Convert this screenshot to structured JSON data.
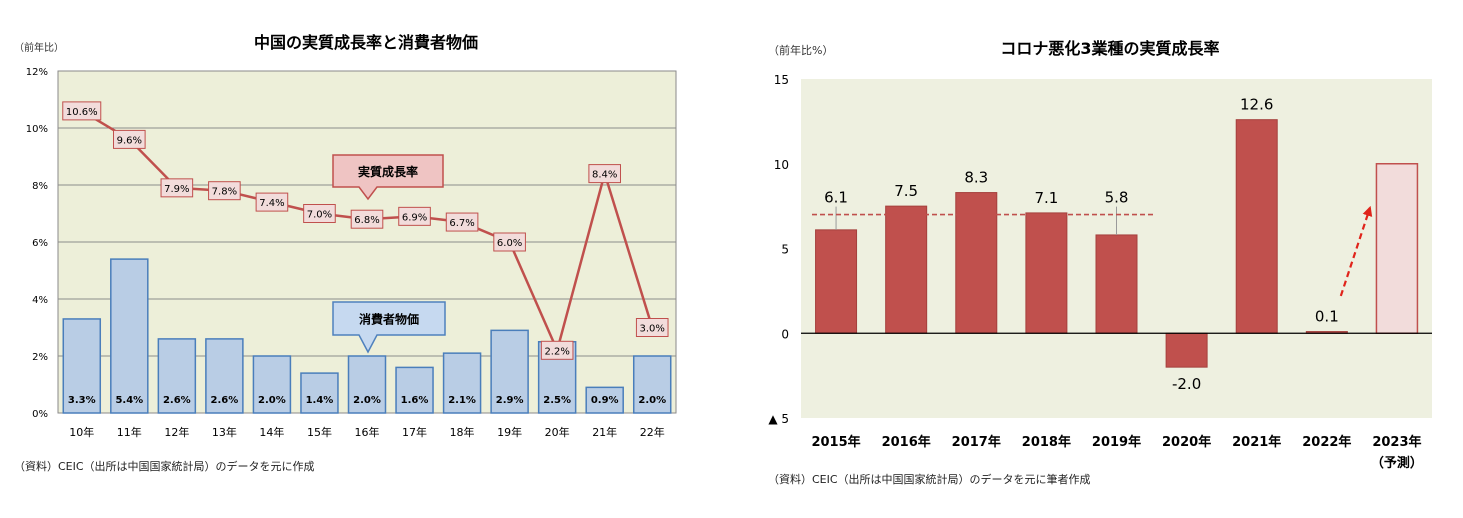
{
  "chart_data": [
    {
      "type": "bar",
      "title": "中国の実質成長率と消費者物価",
      "ylabel": "（前年比）",
      "ylim": [
        0,
        12
      ],
      "yticks": [
        {
          "value": 0,
          "label": "0%"
        },
        {
          "value": 2,
          "label": "2%"
        },
        {
          "value": 4,
          "label": "4%"
        },
        {
          "value": 6,
          "label": "6%"
        },
        {
          "value": 8,
          "label": "8%"
        },
        {
          "value": 10,
          "label": "10%"
        },
        {
          "value": 12,
          "label": "12%"
        }
      ],
      "grid": true,
      "categories": [
        "10年",
        "11年",
        "12年",
        "13年",
        "14年",
        "15年",
        "16年",
        "17年",
        "18年",
        "19年",
        "20年",
        "21年",
        "22年"
      ],
      "series": [
        {
          "name": "消費者物価",
          "type": "bar",
          "color": "#B9CDE5",
          "values": [
            3.3,
            5.4,
            2.6,
            2.6,
            2.0,
            1.4,
            2.0,
            1.6,
            2.1,
            2.9,
            2.5,
            0.9,
            2.0
          ],
          "labels": [
            "3.3%",
            "5.4%",
            "2.6%",
            "2.6%",
            "2.0%",
            "1.4%",
            "2.0%",
            "1.6%",
            "2.1%",
            "2.9%",
            "2.5%",
            "0.9%",
            "2.0%"
          ]
        },
        {
          "name": "実質成長率",
          "type": "line",
          "color": "#C0504D",
          "values": [
            10.6,
            9.6,
            7.9,
            7.8,
            7.4,
            7.0,
            6.8,
            6.9,
            6.7,
            6.0,
            2.2,
            8.4,
            3.0
          ],
          "labels": [
            "10.6%",
            "9.6%",
            "7.9%",
            "7.8%",
            "7.4%",
            "7.0%",
            "6.8%",
            "6.9%",
            "6.7%",
            "6.0%",
            "2.2%",
            "8.4%",
            "3.0%"
          ]
        }
      ],
      "source": "（資料）CEIC（出所は中国国家統計局）のデータを元に作成"
    },
    {
      "type": "bar",
      "title": "コロナ悪化3業種の実質成長率",
      "ylabel": "（前年比%）",
      "ylim": [
        -5,
        15
      ],
      "yticks": [
        {
          "value": -5,
          "label": "▲ 5"
        },
        {
          "value": 0,
          "label": "0"
        },
        {
          "value": 5,
          "label": "5"
        },
        {
          "value": 10,
          "label": "10"
        },
        {
          "value": 15,
          "label": "15"
        }
      ],
      "grid": false,
      "categories": [
        "2015年",
        "2016年",
        "2017年",
        "2018年",
        "2019年",
        "2020年",
        "2021年",
        "2022年",
        "2023年"
      ],
      "category_notes": [
        "",
        "",
        "",
        "",
        "",
        "",
        "",
        "",
        "（予測）"
      ],
      "series": [
        {
          "type": "bar",
          "color": "#C0504D",
          "forecast_color": "#F2DCDB",
          "values": [
            6.1,
            7.5,
            8.3,
            7.1,
            5.8,
            -2.0,
            12.6,
            0.1,
            10.0
          ],
          "forecast": [
            false,
            false,
            false,
            false,
            false,
            false,
            false,
            false,
            true
          ],
          "labels": [
            "6.1",
            "7.5",
            "8.3",
            "7.1",
            "5.8",
            "-2.0",
            "12.6",
            "0.1",
            ""
          ]
        }
      ],
      "reference_line": {
        "value": 7.0,
        "start": 0,
        "end": 4,
        "color": "#C0504D"
      },
      "arrow": {
        "start": 7,
        "end": 8,
        "color": "#E0241B"
      },
      "source": "（資料）CEIC（出所は中国国家統計局）のデータを元に筆者作成"
    }
  ]
}
